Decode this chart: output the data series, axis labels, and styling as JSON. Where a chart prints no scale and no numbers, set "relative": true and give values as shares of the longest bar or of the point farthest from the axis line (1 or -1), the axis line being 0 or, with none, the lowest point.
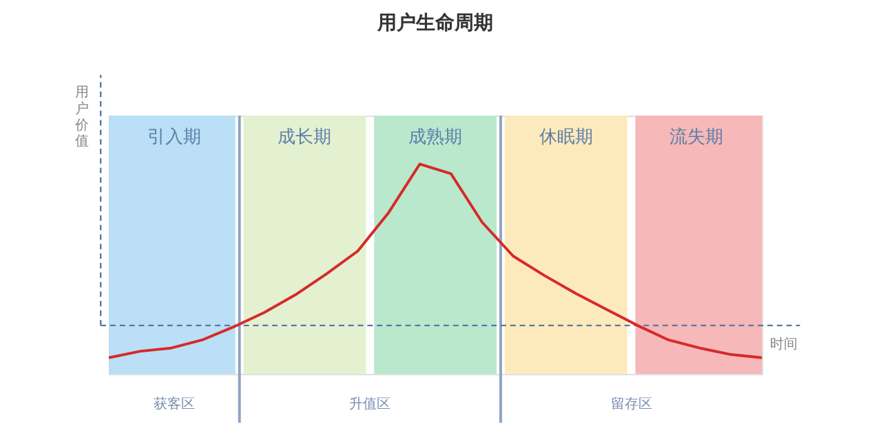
{
  "chart_data": {
    "type": "line",
    "title": "用户生命周期",
    "xlabel": "时间",
    "ylabel": "用户价值",
    "relative": true,
    "categories": [
      null,
      null,
      null,
      null,
      null,
      null,
      null,
      null,
      null,
      null,
      null,
      null,
      null,
      null,
      null,
      null,
      null,
      null,
      null,
      null,
      null,
      null
    ],
    "series": [
      {
        "color": "#d62a2a",
        "values": [
          -0.2,
          -0.16,
          -0.14,
          -0.09,
          -0.01,
          0.08,
          0.19,
          0.32,
          0.46,
          0.7,
          1.0,
          0.94,
          0.64,
          0.43,
          0.31,
          0.2,
          0.1,
          0.0,
          -0.09,
          -0.14,
          -0.18,
          -0.2
        ]
      }
    ],
    "ref_lines": [
      {
        "axis": "y",
        "value": 0,
        "color": "#5a77a0",
        "line_style": "dashed"
      }
    ],
    "annotations": [
      "引入期",
      "成长期",
      "成熟期",
      "休眠期",
      "流失期",
      "获客区",
      "升值区",
      "留存区"
    ]
  }
}
